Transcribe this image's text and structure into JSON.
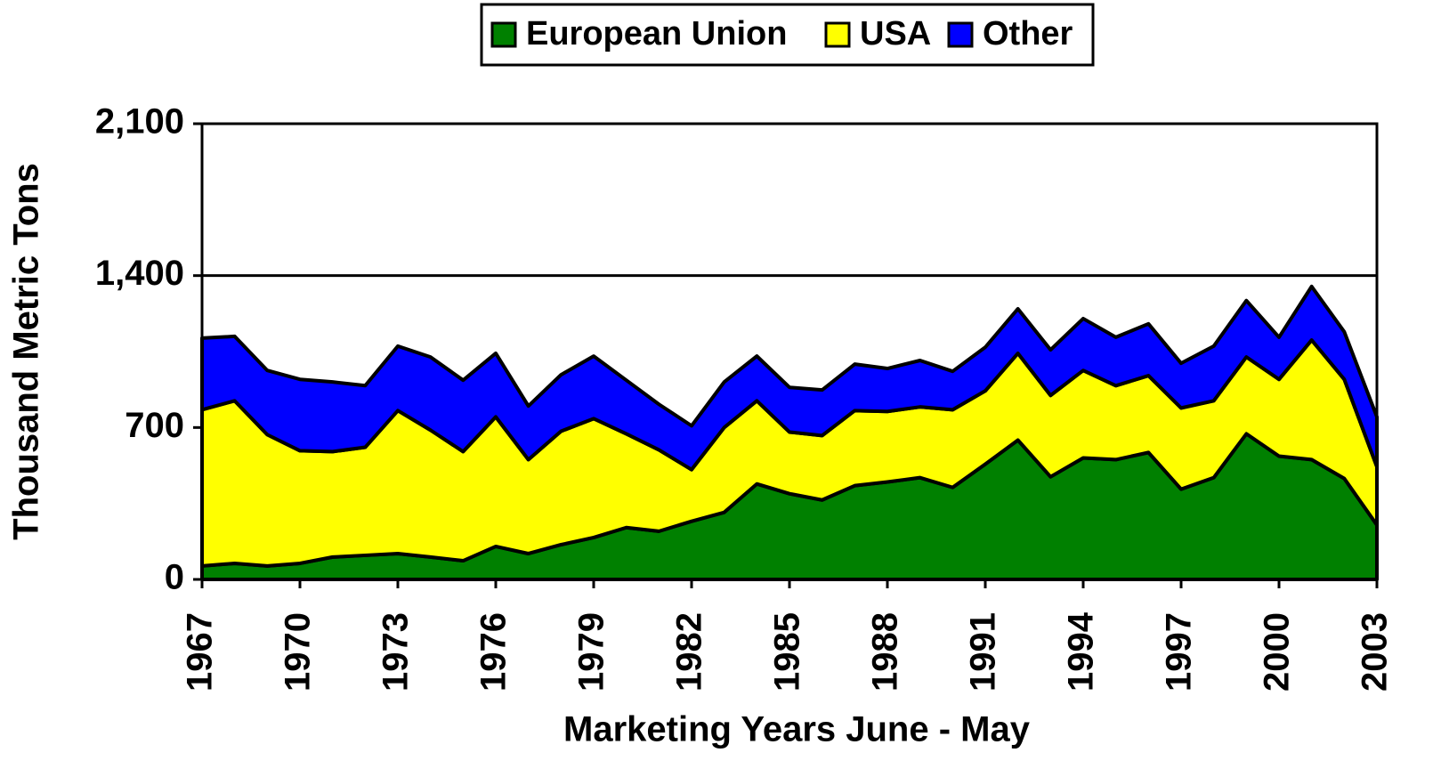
{
  "chart_data": {
    "type": "stacked_area",
    "x_label": "Marketing Years  June - May",
    "y_label": "Thousand Metric Tons",
    "x": [
      1967,
      1968,
      1969,
      1970,
      1971,
      1972,
      1973,
      1974,
      1975,
      1976,
      1977,
      1978,
      1979,
      1980,
      1981,
      1982,
      1983,
      1984,
      1985,
      1986,
      1987,
      1988,
      1989,
      1990,
      1991,
      1992,
      1993,
      1994,
      1995,
      1996,
      1997,
      1998,
      1999,
      2000,
      2001,
      2002,
      2003
    ],
    "series": [
      {
        "name": "European Union",
        "color": "#008000",
        "values": [
          62,
          74,
          62,
          74,
          103,
          111,
          119,
          103,
          86,
          152,
          119,
          160,
          193,
          239,
          222,
          268,
          309,
          440,
          395,
          366,
          432,
          449,
          469,
          424,
          531,
          642,
          473,
          560,
          552,
          585,
          416,
          469,
          671,
          568,
          552,
          465,
          251
        ]
      },
      {
        "name": "USA",
        "color": "#ffff00",
        "values": [
          720,
          749,
          605,
          519,
          486,
          498,
          659,
          585,
          503,
          597,
          433,
          523,
          548,
          432,
          375,
          238,
          391,
          383,
          284,
          297,
          346,
          325,
          326,
          358,
          338,
          400,
          375,
          403,
          341,
          354,
          374,
          354,
          354,
          354,
          551,
          457,
          268
        ]
      },
      {
        "name": "Other",
        "color": "#0000ff",
        "values": [
          330,
          297,
          296,
          329,
          321,
          284,
          297,
          337,
          329,
          293,
          247,
          260,
          288,
          247,
          210,
          202,
          210,
          206,
          206,
          210,
          214,
          198,
          214,
          177,
          201,
          205,
          210,
          239,
          223,
          239,
          206,
          252,
          260,
          194,
          247,
          219,
          230
        ]
      }
    ],
    "xlim": [
      1967,
      2003
    ],
    "xticks": [
      1967,
      1970,
      1973,
      1976,
      1979,
      1982,
      1985,
      1988,
      1991,
      1994,
      1997,
      2000,
      2003
    ],
    "ylim": [
      0,
      2100
    ],
    "yticks": [
      0,
      700,
      {
        "value": 1400,
        "label": "1,400"
      },
      {
        "value": 2100,
        "label": "2,100"
      }
    ],
    "grid": true,
    "legend": "top"
  }
}
